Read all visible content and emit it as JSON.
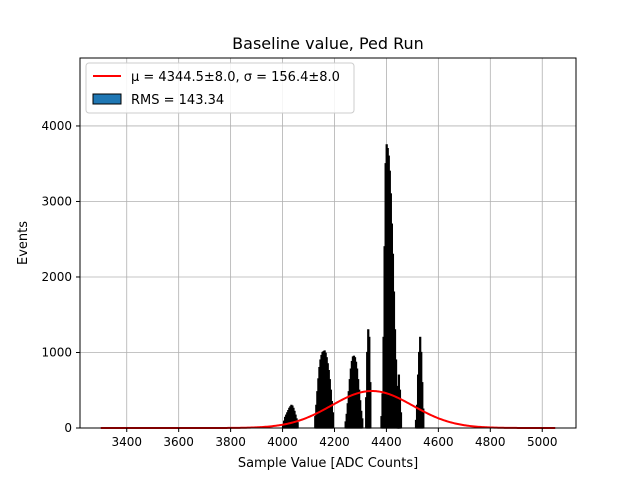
{
  "chart_data": {
    "type": "bar",
    "title": "Baseline value, Ped Run",
    "xlabel": "Sample Value [ADC Counts]",
    "ylabel": "Events",
    "xlim": [
      3220,
      5130
    ],
    "ylim": [
      0,
      4900
    ],
    "xticks": [
      3400,
      3600,
      3800,
      4000,
      4200,
      4400,
      4600,
      4800,
      5000
    ],
    "yticks": [
      0,
      1000,
      2000,
      3000,
      4000
    ],
    "grid": true,
    "legend": {
      "placement": "top-left",
      "entries": [
        {
          "label": "μ = 4344.5±8.0, σ = 156.4±8.0",
          "kind": "line",
          "color": "#ff0000"
        },
        {
          "label": "RMS = 143.34",
          "kind": "patch",
          "color": "#1f77b4"
        }
      ]
    },
    "fit": {
      "mu": 4344.5,
      "sigma": 156.4,
      "amplitude": 490,
      "x_range": [
        3300,
        5050
      ],
      "color": "#ff0000"
    },
    "histogram": {
      "bin_width": 4,
      "color": "#1f77b4",
      "edge_color": "#000000",
      "clusters": [
        {
          "center": 4030,
          "values": [
            40,
            90,
            140,
            170,
            200,
            230,
            260,
            280,
            300,
            290,
            260,
            220,
            170,
            120,
            70
          ]
        },
        {
          "center": 4160,
          "values": [
            150,
            300,
            480,
            650,
            800,
            900,
            960,
            1000,
            1010,
            1020,
            990,
            930,
            850,
            760,
            640,
            500,
            350,
            200
          ]
        },
        {
          "center": 4275,
          "values": [
            80,
            180,
            320,
            480,
            640,
            780,
            880,
            940,
            950,
            930,
            870,
            780,
            640,
            500,
            360,
            220,
            120
          ]
        },
        {
          "center": 4330,
          "values": [
            400,
            1000,
            1300,
            1200,
            600
          ]
        },
        {
          "center": 4415,
          "values": [
            150,
            450,
            1200,
            2400,
            3500,
            3750,
            3700,
            3600,
            3400,
            3100,
            2700,
            2300,
            1800,
            1300,
            900,
            550,
            300,
            150
          ]
        },
        {
          "center": 4450,
          "values": [
            300,
            700,
            500,
            200
          ]
        },
        {
          "center": 4528,
          "values": [
            100,
            300,
            700,
            1000,
            1200,
            1000,
            600,
            250
          ]
        }
      ]
    }
  }
}
